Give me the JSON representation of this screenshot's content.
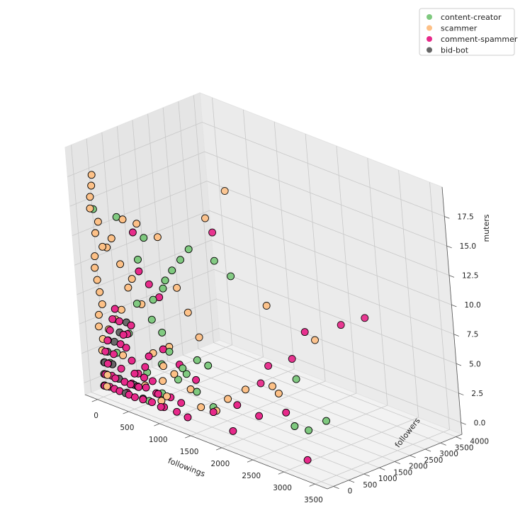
{
  "chart_data": {
    "type": "scatter",
    "projection": "3d",
    "title": "",
    "xlabel": "followings",
    "ylabel": "followers",
    "zlabel": "muters",
    "xticks": [
      0,
      500,
      1000,
      1500,
      2000,
      2500,
      3000,
      3500
    ],
    "yticks": [
      0,
      500,
      1000,
      1500,
      2000,
      2500,
      3000,
      3500,
      4000
    ],
    "zticks": [
      0.0,
      2.5,
      5.0,
      7.5,
      10.0,
      12.5,
      15.0,
      17.5
    ],
    "xtick_labels": [
      "0",
      "500",
      "1000",
      "1500",
      "2000",
      "2500",
      "3000",
      "3500"
    ],
    "ytick_labels": [
      "0",
      "500",
      "1000",
      "1500",
      "2000",
      "2500",
      "3000",
      "3500",
      "4000"
    ],
    "ztick_labels": [
      "0.0",
      "2.5",
      "5.0",
      "7.5",
      "10.0",
      "12.5",
      "15.0",
      "17.5"
    ],
    "xlim": [
      -200,
      3700
    ],
    "ylim": [
      -200,
      4200
    ],
    "zlim": [
      -1,
      20
    ],
    "grid": true,
    "legend_position": "top-right",
    "series": [
      {
        "name": "content-creator",
        "color": "#7fc97f",
        "points": [
          [
            3300,
            700,
            3
          ],
          [
            3100,
            500,
            2
          ],
          [
            2900,
            450,
            2
          ],
          [
            2700,
            1000,
            5
          ],
          [
            1800,
            900,
            12
          ],
          [
            1600,
            800,
            13
          ],
          [
            1400,
            400,
            14
          ],
          [
            1300,
            300,
            13
          ],
          [
            1200,
            200,
            12
          ],
          [
            1100,
            150,
            11
          ],
          [
            1000,
            250,
            10
          ],
          [
            900,
            100,
            9
          ],
          [
            800,
            150,
            14
          ],
          [
            700,
            100,
            12
          ],
          [
            400,
            100,
            15
          ],
          [
            50,
            50,
            15
          ],
          [
            1700,
            150,
            5
          ],
          [
            1500,
            200,
            5
          ],
          [
            1300,
            100,
            4
          ],
          [
            1100,
            100,
            5
          ],
          [
            900,
            300,
            6
          ],
          [
            800,
            200,
            7
          ],
          [
            600,
            150,
            8
          ],
          [
            500,
            100,
            6
          ],
          [
            400,
            200,
            5
          ],
          [
            300,
            100,
            4
          ],
          [
            200,
            150,
            3
          ],
          [
            100,
            100,
            2
          ],
          [
            1200,
            400,
            3
          ],
          [
            1000,
            500,
            2
          ],
          [
            800,
            400,
            3
          ],
          [
            600,
            300,
            2
          ],
          [
            1400,
            300,
            2
          ],
          [
            1600,
            400,
            1
          ],
          [
            900,
            150,
            1
          ],
          [
            700,
            100,
            0
          ]
        ]
      },
      {
        "name": "scammer",
        "color": "#fdc086",
        "points": [
          [
            1500,
            1500,
            18
          ],
          [
            1400,
            1000,
            16
          ],
          [
            2200,
            1200,
            10
          ],
          [
            2800,
            1500,
            8
          ],
          [
            2600,
            600,
            4
          ],
          [
            2400,
            800,
            4
          ],
          [
            2000,
            700,
            3
          ],
          [
            1800,
            500,
            2
          ],
          [
            1700,
            300,
            1
          ],
          [
            1500,
            200,
            1
          ],
          [
            1300,
            300,
            2
          ],
          [
            1100,
            200,
            3
          ],
          [
            1000,
            100,
            1
          ],
          [
            900,
            200,
            2
          ],
          [
            800,
            300,
            0
          ],
          [
            600,
            200,
            1
          ],
          [
            50,
            50,
            17
          ],
          [
            80,
            30,
            18
          ],
          [
            20,
            40,
            16
          ],
          [
            10,
            30,
            15
          ],
          [
            100,
            80,
            14
          ],
          [
            150,
            60,
            12
          ],
          [
            60,
            40,
            13
          ],
          [
            30,
            20,
            11
          ],
          [
            20,
            10,
            10
          ],
          [
            40,
            20,
            9
          ],
          [
            60,
            30,
            8
          ],
          [
            80,
            40,
            7
          ],
          [
            20,
            20,
            6
          ],
          [
            10,
            10,
            5
          ],
          [
            50,
            30,
            4
          ],
          [
            30,
            20,
            3
          ],
          [
            200,
            100,
            12
          ],
          [
            300,
            80,
            13
          ],
          [
            500,
            100,
            15
          ],
          [
            700,
            150,
            15
          ],
          [
            400,
            100,
            11
          ],
          [
            450,
            200,
            9
          ],
          [
            550,
            150,
            10
          ],
          [
            650,
            200,
            8
          ],
          [
            350,
            120,
            7
          ],
          [
            250,
            100,
            6
          ],
          [
            150,
            50,
            5
          ],
          [
            120,
            60,
            4
          ],
          [
            100,
            40,
            2
          ],
          [
            80,
            30,
            1
          ],
          [
            60,
            20,
            0
          ],
          [
            300,
            150,
            3
          ],
          [
            900,
            400,
            14
          ],
          [
            1100,
            500,
            10
          ],
          [
            1200,
            600,
            8
          ],
          [
            1300,
            700,
            6
          ],
          [
            1000,
            300,
            5
          ],
          [
            750,
            250,
            4
          ],
          [
            850,
            350,
            3
          ]
        ]
      },
      {
        "name": "comment-spammer",
        "color": "#e7298a",
        "points": [
          [
            3500,
            1800,
            11
          ],
          [
            3200,
            1600,
            10
          ],
          [
            2800,
            1200,
            9
          ],
          [
            2500,
            1300,
            6
          ],
          [
            2200,
            1100,
            5
          ],
          [
            2000,
            1200,
            3
          ],
          [
            2800,
            400,
            3
          ],
          [
            2400,
            300,
            2
          ],
          [
            2000,
            400,
            2
          ],
          [
            1700,
            200,
            1
          ],
          [
            3200,
            200,
            0
          ],
          [
            1500,
            1000,
            15
          ],
          [
            2000,
            200,
            0
          ],
          [
            1400,
            300,
            3
          ],
          [
            1200,
            200,
            4
          ],
          [
            1000,
            100,
            5
          ],
          [
            900,
            300,
            9
          ],
          [
            800,
            200,
            10
          ],
          [
            700,
            100,
            11
          ],
          [
            600,
            200,
            14
          ],
          [
            500,
            100,
            6
          ],
          [
            400,
            150,
            5
          ],
          [
            300,
            100,
            4
          ],
          [
            200,
            50,
            3
          ],
          [
            100,
            30,
            2
          ],
          [
            50,
            20,
            1
          ],
          [
            30,
            10,
            0
          ],
          [
            150,
            80,
            2
          ],
          [
            250,
            60,
            1
          ],
          [
            350,
            90,
            0
          ],
          [
            450,
            70,
            1
          ],
          [
            550,
            110,
            2
          ],
          [
            650,
            130,
            1
          ],
          [
            750,
            90,
            0
          ],
          [
            850,
            60,
            1
          ],
          [
            950,
            80,
            0
          ],
          [
            1050,
            120,
            1
          ],
          [
            1150,
            90,
            0
          ],
          [
            1250,
            60,
            1
          ],
          [
            1350,
            40,
            0
          ],
          [
            80,
            20,
            3
          ],
          [
            120,
            40,
            4
          ],
          [
            180,
            30,
            5
          ],
          [
            220,
            60,
            6
          ],
          [
            280,
            50,
            7
          ],
          [
            320,
            80,
            6
          ],
          [
            380,
            60,
            5
          ],
          [
            420,
            40,
            4
          ],
          [
            480,
            70,
            3
          ],
          [
            520,
            50,
            2
          ],
          [
            580,
            30,
            1
          ],
          [
            620,
            60,
            0
          ],
          [
            680,
            40,
            2
          ],
          [
            720,
            20,
            3
          ],
          [
            780,
            50,
            4
          ],
          [
            820,
            30,
            2
          ],
          [
            880,
            60,
            1
          ],
          [
            920,
            40,
            0
          ],
          [
            60,
            40,
            1
          ],
          [
            40,
            30,
            2
          ],
          [
            20,
            20,
            0
          ],
          [
            90,
            50,
            0
          ],
          [
            130,
            70,
            1
          ],
          [
            170,
            40,
            0
          ],
          [
            210,
            20,
            1
          ],
          [
            260,
            30,
            0
          ],
          [
            310,
            40,
            2
          ],
          [
            360,
            20,
            1
          ],
          [
            410,
            30,
            0
          ],
          [
            460,
            10,
            1
          ],
          [
            510,
            20,
            0
          ],
          [
            560,
            40,
            1
          ]
        ]
      },
      {
        "name": "bid-bot",
        "color": "#666666",
        "points": [
          [
            400,
            150,
            6
          ],
          [
            300,
            100,
            5
          ],
          [
            200,
            100,
            4
          ],
          [
            100,
            50,
            3
          ],
          [
            50,
            30,
            2
          ],
          [
            30,
            20,
            1
          ],
          [
            20,
            10,
            0
          ],
          [
            500,
            50,
            1
          ],
          [
            600,
            100,
            0
          ],
          [
            150,
            80,
            2
          ],
          [
            250,
            60,
            1
          ],
          [
            350,
            40,
            0
          ]
        ]
      }
    ]
  }
}
